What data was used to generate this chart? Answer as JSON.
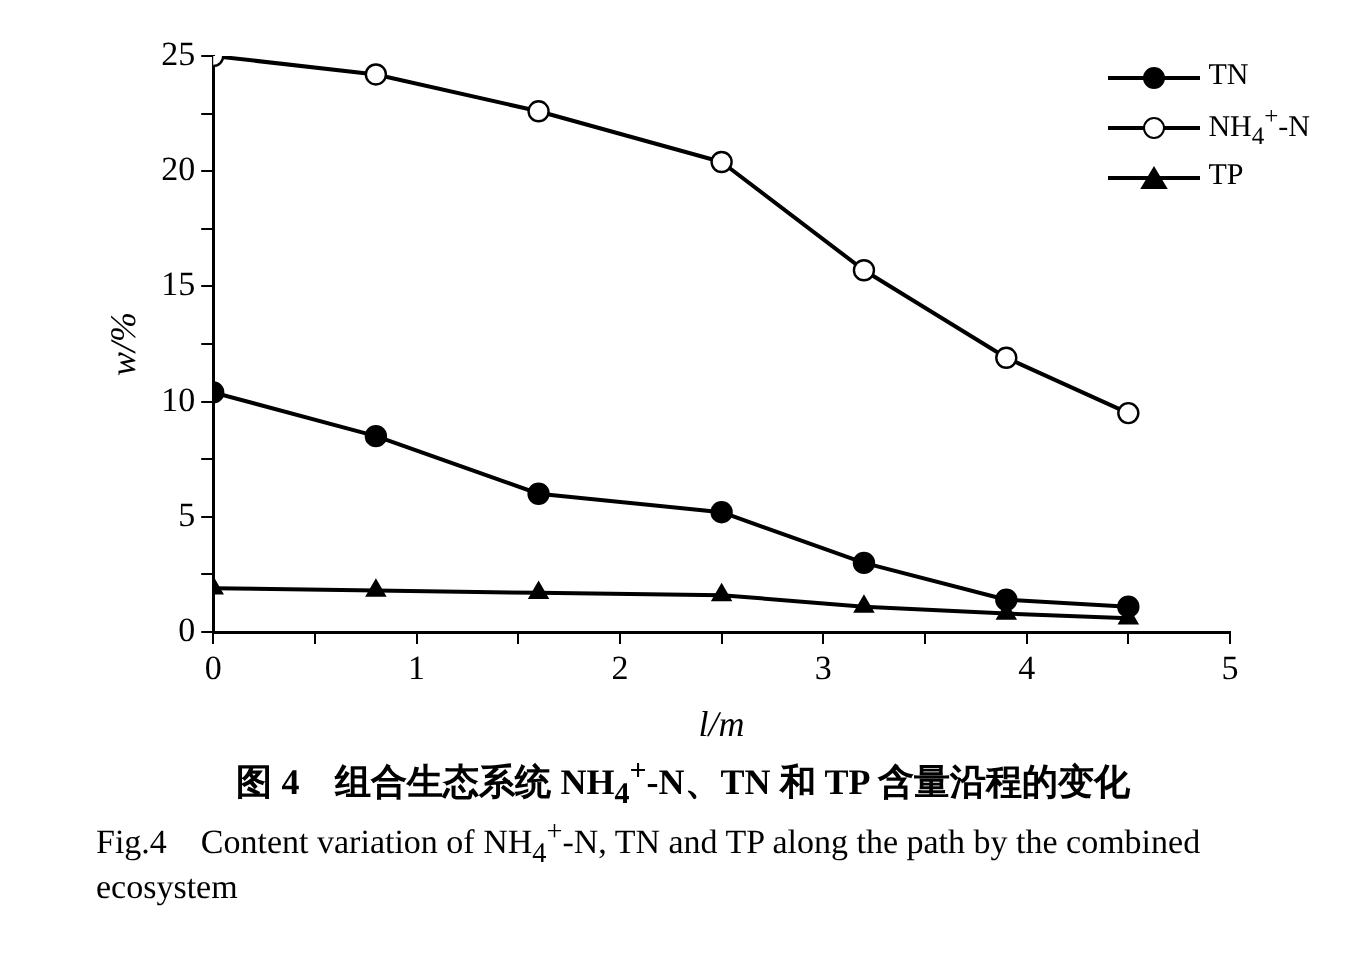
{
  "chart_data": {
    "type": "line",
    "title": "图 4　组合生态系统 NH$_{4}$$^{+}$-N、TN 和 TP 含量沿程的变化",
    "subtitle": "Fig.4　Content variation of NH$_{4}$$^{+}$-N, TN and TP along the path by the combined ecosystem",
    "xlabel": "l/m",
    "ylabel": "w/%",
    "x": [
      0,
      0.8,
      1.6,
      2.5,
      3.2,
      3.9,
      4.5
    ],
    "series": [
      {
        "name": "TN",
        "color": "#000000",
        "marker": "circle",
        "values": [
          10.4,
          8.5,
          6.0,
          5.2,
          3.0,
          1.4,
          1.1
        ]
      },
      {
        "name": "NH$_{4}$$^{+}$-N",
        "color": "#000000",
        "marker": "circle-open",
        "values": [
          25,
          24.2,
          22.6,
          20.4,
          15.7,
          11.9,
          9.5
        ]
      },
      {
        "name": "TP",
        "color": "#000000",
        "marker": "triangle",
        "values": [
          1.9,
          1.8,
          1.7,
          1.6,
          1.1,
          0.8,
          0.6
        ]
      }
    ],
    "xlim": [
      0,
      5
    ],
    "ylim": [
      0,
      25
    ],
    "xticks": [
      0,
      {
        "value": 0.5,
        "label": null
      },
      1,
      {
        "value": 1.5,
        "label": null
      },
      2,
      {
        "value": 2.5,
        "label": null
      },
      3,
      {
        "value": 3.5,
        "label": null
      },
      4,
      {
        "value": 4.5,
        "label": null
      },
      5
    ],
    "yticks": [
      0,
      {
        "value": 2.5,
        "label": null
      },
      5,
      {
        "value": 7.5,
        "label": null
      },
      10,
      {
        "value": 12.5,
        "label": null
      },
      15,
      {
        "value": 17.5,
        "label": null
      },
      20,
      {
        "value": 22.5,
        "label": null
      },
      25
    ],
    "grid": false,
    "legend": "top right",
    "line_style": "solid"
  }
}
